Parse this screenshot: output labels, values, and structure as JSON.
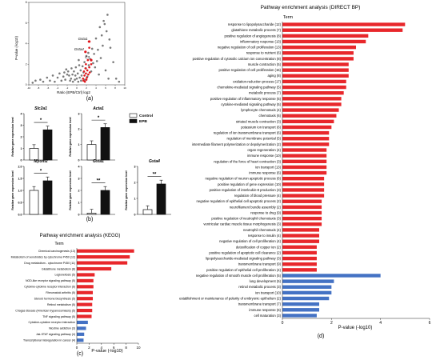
{
  "figure": {
    "panel_a": "(a)",
    "panel_b": "(b)",
    "panel_c": "(c)",
    "panel_d": "(d)"
  },
  "colors": {
    "kegg_red": "#e8272b",
    "kegg_blue": "#4472c4",
    "volcano_gray": "#7a7a7a",
    "volcano_red": "#e0161b",
    "bar_epb": "#111111",
    "bar_control": "#ffffff"
  },
  "chart_data": [
    {
      "id": "volcano",
      "type": "scatter",
      "title": "",
      "xlabel": "Ratio (EPB/Ctrl) log2",
      "ylabel": "P-value (-log10)",
      "xlim": [
        -10,
        10
      ],
      "ylim": [
        0,
        8
      ],
      "x_ticks": [
        "-10",
        "-8",
        "-6",
        "-4",
        "-2",
        "0",
        "2",
        "4",
        "6",
        "8",
        "10"
      ],
      "y_ticks": [
        "0",
        "2",
        "4",
        "6",
        "8"
      ],
      "grid": false,
      "annotations": [
        {
          "label": "Gsta1",
          "x": 2.6,
          "y": 4.2
        },
        {
          "label": "Gsta4",
          "x": 1.8,
          "y": 3.2
        },
        {
          "label": "C3",
          "x": 3.0,
          "y": 2.4
        }
      ],
      "gray_points": [
        [
          0.3,
          0.3
        ],
        [
          -0.4,
          0.5
        ],
        [
          0.6,
          0.7
        ],
        [
          -0.8,
          0.3
        ],
        [
          1.0,
          0.9
        ],
        [
          -1.2,
          0.6
        ],
        [
          0.2,
          1.1
        ],
        [
          -0.3,
          0.9
        ],
        [
          1.4,
          1.2
        ],
        [
          -1.6,
          0.9
        ],
        [
          0.8,
          1.4
        ],
        [
          -0.6,
          1.3
        ],
        [
          1.9,
          1.6
        ],
        [
          -2.0,
          1.0
        ],
        [
          2.2,
          0.8
        ],
        [
          -2.4,
          0.5
        ],
        [
          1.2,
          1.8
        ],
        [
          -1.1,
          1.6
        ],
        [
          2.5,
          1.9
        ],
        [
          -2.8,
          0.8
        ],
        [
          3.0,
          1.3
        ],
        [
          -3.2,
          0.4
        ],
        [
          3.4,
          2.1
        ],
        [
          1.6,
          2.2
        ],
        [
          -1.4,
          0.4
        ],
        [
          0.5,
          1.9
        ],
        [
          2.8,
          2.5
        ],
        [
          3.8,
          1.7
        ],
        [
          -3.6,
          1.1
        ],
        [
          4.2,
          2.3
        ],
        [
          -4.0,
          0.7
        ],
        [
          4.6,
          1.0
        ],
        [
          -4.6,
          0.3
        ],
        [
          5.0,
          2.6
        ],
        [
          3.6,
          3.0
        ],
        [
          4.4,
          3.4
        ],
        [
          5.4,
          3.8
        ],
        [
          3.2,
          3.5
        ],
        [
          4.0,
          4.5
        ],
        [
          5.2,
          4.8
        ],
        [
          4.8,
          5.6
        ],
        [
          5.6,
          6.2
        ],
        [
          6.2,
          5.2
        ],
        [
          6.8,
          4.4
        ],
        [
          5.8,
          5.9
        ],
        [
          6.4,
          6.8
        ],
        [
          7.0,
          3.6
        ],
        [
          7.6,
          2.2
        ],
        [
          6.0,
          1.4
        ],
        [
          6.6,
          0.6
        ],
        [
          -5.0,
          0.9
        ],
        [
          -5.6,
          0.4
        ],
        [
          -6.2,
          0.7
        ],
        [
          -7.0,
          0.3
        ],
        [
          -7.6,
          0.5
        ],
        [
          -8.6,
          0.4
        ],
        [
          -9.2,
          0.2
        ],
        [
          8.2,
          0.6
        ],
        [
          8.8,
          0.3
        ],
        [
          0.0,
          0.6
        ],
        [
          0.9,
          0.4
        ],
        [
          -0.9,
          1.0
        ],
        [
          1.7,
          0.5
        ],
        [
          2.0,
          2.8
        ],
        [
          2.4,
          3.1
        ],
        [
          -1.8,
          1.3
        ],
        [
          -2.2,
          1.5
        ],
        [
          -2.6,
          1.2
        ],
        [
          0.4,
          2.4
        ],
        [
          -0.2,
          1.7
        ]
      ],
      "red_points": [
        [
          1.3,
          0.6
        ],
        [
          1.6,
          0.9
        ],
        [
          1.9,
          1.1
        ],
        [
          2.1,
          0.7
        ],
        [
          2.4,
          1.0
        ],
        [
          1.5,
          1.3
        ],
        [
          1.8,
          1.6
        ],
        [
          2.2,
          1.4
        ],
        [
          2.6,
          1.7
        ],
        [
          1.4,
          0.4
        ],
        [
          2.0,
          0.5
        ],
        [
          2.7,
          1.2
        ],
        [
          2.3,
          2.4
        ],
        [
          2.6,
          3.6
        ],
        [
          3.0,
          2.0
        ],
        [
          2.5,
          4.2
        ],
        [
          1.9,
          2.0
        ],
        [
          1.7,
          0.3
        ]
      ]
    },
    {
      "id": "expression",
      "type": "bar",
      "ylabel": "Relative gene expression level",
      "series": [
        {
          "name": "Control"
        },
        {
          "name": "EPB"
        }
      ],
      "genes": [
        {
          "name": "Slc2a1",
          "control": 1.0,
          "epb": 2.6,
          "sig": "*",
          "ylim": [
            0,
            4
          ],
          "ticks": [
            "0",
            "1",
            "2",
            "3",
            "4"
          ]
        },
        {
          "name": "Acta1",
          "control": 1.0,
          "epb": 2.1,
          "sig": "*",
          "ylim": [
            0,
            3
          ],
          "ticks": [
            "0",
            "1",
            "2",
            "3"
          ]
        },
        {
          "name": "Myom2",
          "control": 1.0,
          "epb": 1.4,
          "sig": "*",
          "ylim": [
            0,
            2.0
          ],
          "ticks": [
            "0.0",
            "0.5",
            "1.0",
            "1.5",
            "2.0"
          ]
        },
        {
          "name": "Gsta1",
          "control": 0.1,
          "epb": 2.0,
          "sig": "**",
          "ylim": [
            0,
            4
          ],
          "ticks": [
            "0",
            "1",
            "2",
            "3",
            "4"
          ]
        },
        {
          "name": "Gsta4",
          "control": 0.3,
          "epb": 1.9,
          "sig": "**",
          "ylim": [
            0,
            3
          ],
          "ticks": [
            "0",
            "1",
            "2",
            "3"
          ]
        }
      ]
    },
    {
      "id": "kegg",
      "type": "bar",
      "orientation": "horizontal",
      "title": "Pathway enrichment analysis (KEGG)",
      "header": "Term",
      "xlabel": "P-value (-log10)",
      "xlim": [
        0,
        10
      ],
      "x_ticks": [
        "0",
        "2",
        "4",
        "6",
        "8",
        "10"
      ],
      "categories": [
        "Chemical carcinogenesis (13)",
        "Metabolism of xenobiotics by cytochrome P450 (12)",
        "Drug metabolism - cytochrome P450 (11)",
        "Glutathione metabolism (8)",
        "Legionellosis (5)",
        "NOD-like receptor signaling pathway (5)",
        "Cytokine-cytokine receptor interaction (6)",
        "Rheumatoid arthritis (5)",
        "Steroid hormone biosynthesis (5)",
        "Retinol metabolism (5)",
        "Chagas disease (American trypanosomiasis) (5)",
        "TNF signaling pathway (5)",
        "Cytokine-cytokine receptor interaction",
        "Nicotine addiction (3)",
        "Jak-STAT signaling pathway (4)",
        "Transcriptional misregulation in cancer (4)"
      ],
      "values": [
        9.3,
        8.6,
        8.2,
        5.6,
        2.9,
        2.7,
        2.7,
        2.6,
        2.6,
        2.5,
        2.5,
        2.4,
        1.8,
        1.5,
        1.2,
        1.1
      ],
      "group": [
        "up",
        "up",
        "up",
        "up",
        "up",
        "up",
        "up",
        "up",
        "up",
        "up",
        "up",
        "up",
        "down",
        "down",
        "down",
        "down"
      ]
    },
    {
      "id": "direct_bp",
      "type": "bar",
      "orientation": "horizontal",
      "title": "Pathway enrichment analysis (DIRECT BP)",
      "header": "Term",
      "xlabel": "P-value (-log10)",
      "xlim": [
        0,
        6
      ],
      "x_ticks": [
        "0",
        "2",
        "4",
        "6"
      ],
      "categories": [
        "response to lipopolysaccharide (12)",
        "glutathione metabolic process (7)",
        "positive regulation of angiogenesis (8)",
        "inflammatory response (13)",
        "negative regulation of cell proliferation (13)",
        "response to nutrient (6)",
        "positive regulation of cytosolic calcium ion concentration (8)",
        "muscle contraction (5)",
        "positive regulation of cell proliferation (15)",
        "aging (8)",
        "oxidation-reduction process (17)",
        "chemokine-mediated signaling pathway (5)",
        "metabolic process (7)",
        "positive regulation of inflammatory response (5)",
        "cytokine-mediated signaling pathway (5)",
        "lymphocyte chemotaxis (4)",
        "chemotaxis (6)",
        "striated muscle contraction (3)",
        "potassium ion transport (6)",
        "regulation of ion transmembrane transport (6)",
        "regulation of membrane potential (5)",
        "intermediate filament polymerization or depolymerization (2)",
        "organ regeneration (4)",
        "immune response (10)",
        "regulation of the force of heart contraction (3)",
        "ion transport (13)",
        "immune response (6)",
        "negative regulation of neuron apoptotic process (6)",
        "positive regulation of gene expression (10)",
        "positive regulation of interleukin-8 production (3)",
        "regulation of blood pressure (4)",
        "negative regulation of epithelial cell apoptotic process (2)",
        "neurofilament bundle assembly (2)",
        "response to drug (9)",
        "positive regulation of neutrophil chemotaxis (3)",
        "ventricular cardiac muscle tissue morphogenesis (3)",
        "neutrophil chemotaxis (4)",
        "response to insulin (4)",
        "negative regulation of cell proliferation (4)",
        "detoxification of copper ion (2)",
        "positive regulation of apoptotic cell clearance (2)",
        "lipopolysaccharide-mediated signaling pathway (3)",
        "transmembrane transport (9)",
        "positive regulation of epithelial cell proliferation (4)",
        "negative regulation of smooth muscle cell proliferation (5)",
        "lung development (5)",
        "retinol metabolic process (3)",
        "ion transport (10)",
        "establishment or maintenance of polarity of embryonic epithelium (2)",
        "transmembrane transport (7)",
        "immune response (6)",
        "cell maturation (3)"
      ],
      "values": [
        5.0,
        4.9,
        3.5,
        3.4,
        3.0,
        2.9,
        2.9,
        2.7,
        2.7,
        2.7,
        2.6,
        2.6,
        2.5,
        2.4,
        2.4,
        2.3,
        2.2,
        2.1,
        2.0,
        1.9,
        1.9,
        1.9,
        1.8,
        1.8,
        1.8,
        1.8,
        1.8,
        1.7,
        1.7,
        1.7,
        1.7,
        1.6,
        1.6,
        1.6,
        1.6,
        1.6,
        1.5,
        1.5,
        1.5,
        1.4,
        1.4,
        1.4,
        1.4,
        1.4,
        4.0,
        2.1,
        2.0,
        2.0,
        1.9,
        1.5,
        1.5,
        1.4
      ],
      "group": [
        "up",
        "up",
        "up",
        "up",
        "up",
        "up",
        "up",
        "up",
        "up",
        "up",
        "up",
        "up",
        "up",
        "up",
        "up",
        "up",
        "up",
        "up",
        "up",
        "up",
        "up",
        "up",
        "up",
        "up",
        "up",
        "up",
        "up",
        "up",
        "up",
        "up",
        "up",
        "up",
        "up",
        "up",
        "up",
        "up",
        "up",
        "up",
        "up",
        "up",
        "up",
        "up",
        "up",
        "up",
        "down",
        "down",
        "down",
        "down",
        "down",
        "down",
        "down",
        "down"
      ]
    }
  ]
}
